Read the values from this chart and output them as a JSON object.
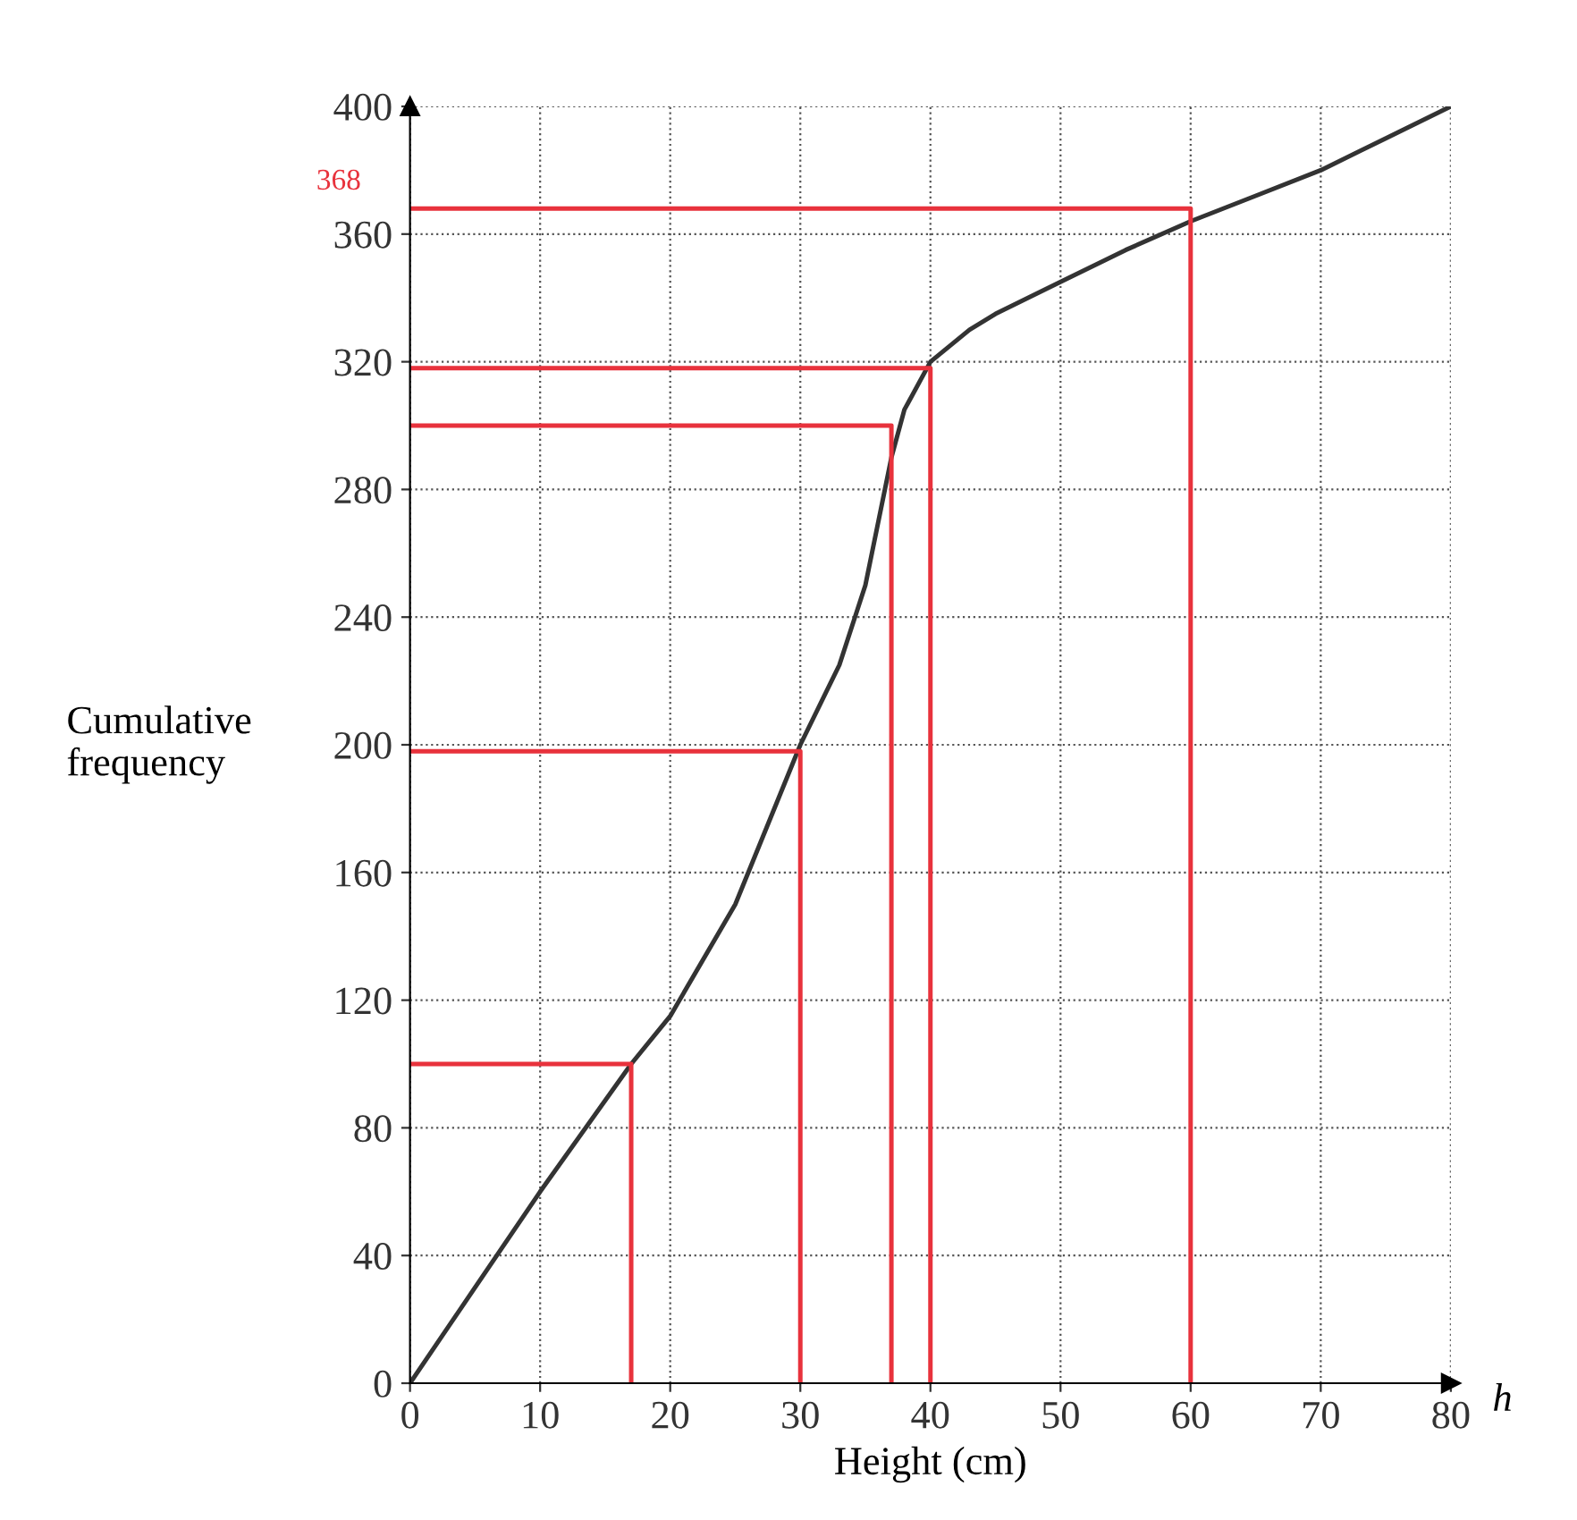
{
  "chart_data": {
    "type": "line",
    "xlabel": "Height (cm)",
    "ylabel": "Cumulative\nfrequency",
    "series": [
      {
        "color": "#333333",
        "x": [
          0,
          5,
          10,
          17,
          20,
          25,
          30,
          33,
          35,
          37,
          38,
          40,
          43,
          45,
          50,
          55,
          60,
          65,
          70,
          75,
          80
        ],
        "values": [
          0,
          30,
          60,
          100,
          115,
          150,
          200,
          225,
          250,
          290,
          305,
          320,
          330,
          335,
          345,
          355,
          364,
          372,
          380,
          390,
          400
        ]
      },
      {
        "color": "#e8323c",
        "x": [
          0,
          17,
          17
        ],
        "values": [
          100,
          100,
          0
        ]
      },
      {
        "color": "#e8323c",
        "x": [
          0,
          30,
          30
        ],
        "values": [
          198,
          198,
          0
        ]
      },
      {
        "color": "#e8323c",
        "x": [
          0,
          37,
          37
        ],
        "values": [
          300,
          300,
          0
        ]
      },
      {
        "color": "#e8323c",
        "x": [
          0,
          40,
          40
        ],
        "values": [
          318,
          318,
          0
        ]
      },
      {
        "color": "#e8323c",
        "x": [
          0,
          60,
          60
        ],
        "values": [
          368,
          368,
          0
        ]
      }
    ],
    "xlim": [
      0,
      80
    ],
    "ylim": [
      0,
      400
    ],
    "xticks": [
      0,
      10,
      20,
      30,
      40,
      50,
      60,
      70,
      80
    ],
    "yticks": [
      0,
      40,
      80,
      120,
      160,
      200,
      240,
      280,
      320,
      360,
      400
    ],
    "grid": true,
    "marker": "none",
    "line_style": "solid",
    "annotations": [
      "368",
      "h"
    ]
  }
}
